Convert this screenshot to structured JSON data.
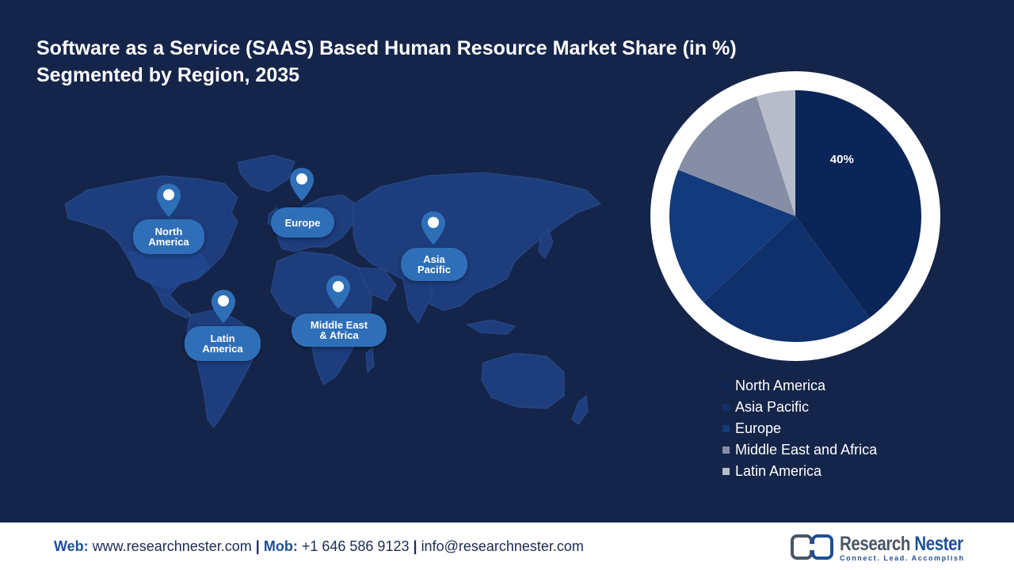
{
  "header": {
    "title_line1": "Software as a Service (SAAS) Based Human Resource Market Share (in %)",
    "title_line2": "Segmented by Region, 2035"
  },
  "map": {
    "regions": [
      {
        "id": "north-america",
        "line1": "North",
        "line2": "America"
      },
      {
        "id": "europe",
        "line1": "Europe",
        "line2": ""
      },
      {
        "id": "asia-pacific",
        "line1": "Asia",
        "line2": "Pacific"
      },
      {
        "id": "latin-america",
        "line1": "Latin",
        "line2": "America"
      },
      {
        "id": "middle-east-africa",
        "line1": "Middle East",
        "line2": "& Africa"
      }
    ],
    "colors": {
      "land": "#1d3d7c",
      "land_highlight": "#244a94",
      "pin": "#2f6fb8"
    }
  },
  "chart_data": {
    "type": "pie",
    "title": "Software as a Service (SAAS) Based Human Resource Market Share (in %) Segmented by Region, 2035",
    "slices": [
      {
        "label": "North America",
        "value": 40,
        "color": "#0b2558"
      },
      {
        "label": "Asia Pacific",
        "value": 23,
        "color": "#0f306a"
      },
      {
        "label": "Europe",
        "value": 18,
        "color": "#123a7c"
      },
      {
        "label": "Middle East and Africa",
        "value": 14,
        "color": "#868ea6"
      },
      {
        "label": "Latin America",
        "value": 5,
        "color": "#b7bccb"
      }
    ],
    "data_labels": [
      {
        "slice": "North America",
        "text": "40%"
      }
    ],
    "start_angle_deg": 0,
    "direction": "clockwise",
    "legend_position": "bottom-right",
    "ring_color": "#ffffff"
  },
  "footer": {
    "web_label": "Web:",
    "web_value": "www.researchnester.com",
    "sep": "|",
    "mob_label": "Mob:",
    "mob_value": "+1 646 586 9123",
    "email": "info@researchnester.com",
    "brand_name_1": "Research",
    "brand_name_2": "Nester",
    "brand_tagline": "Connect. Lead. Accomplish"
  }
}
